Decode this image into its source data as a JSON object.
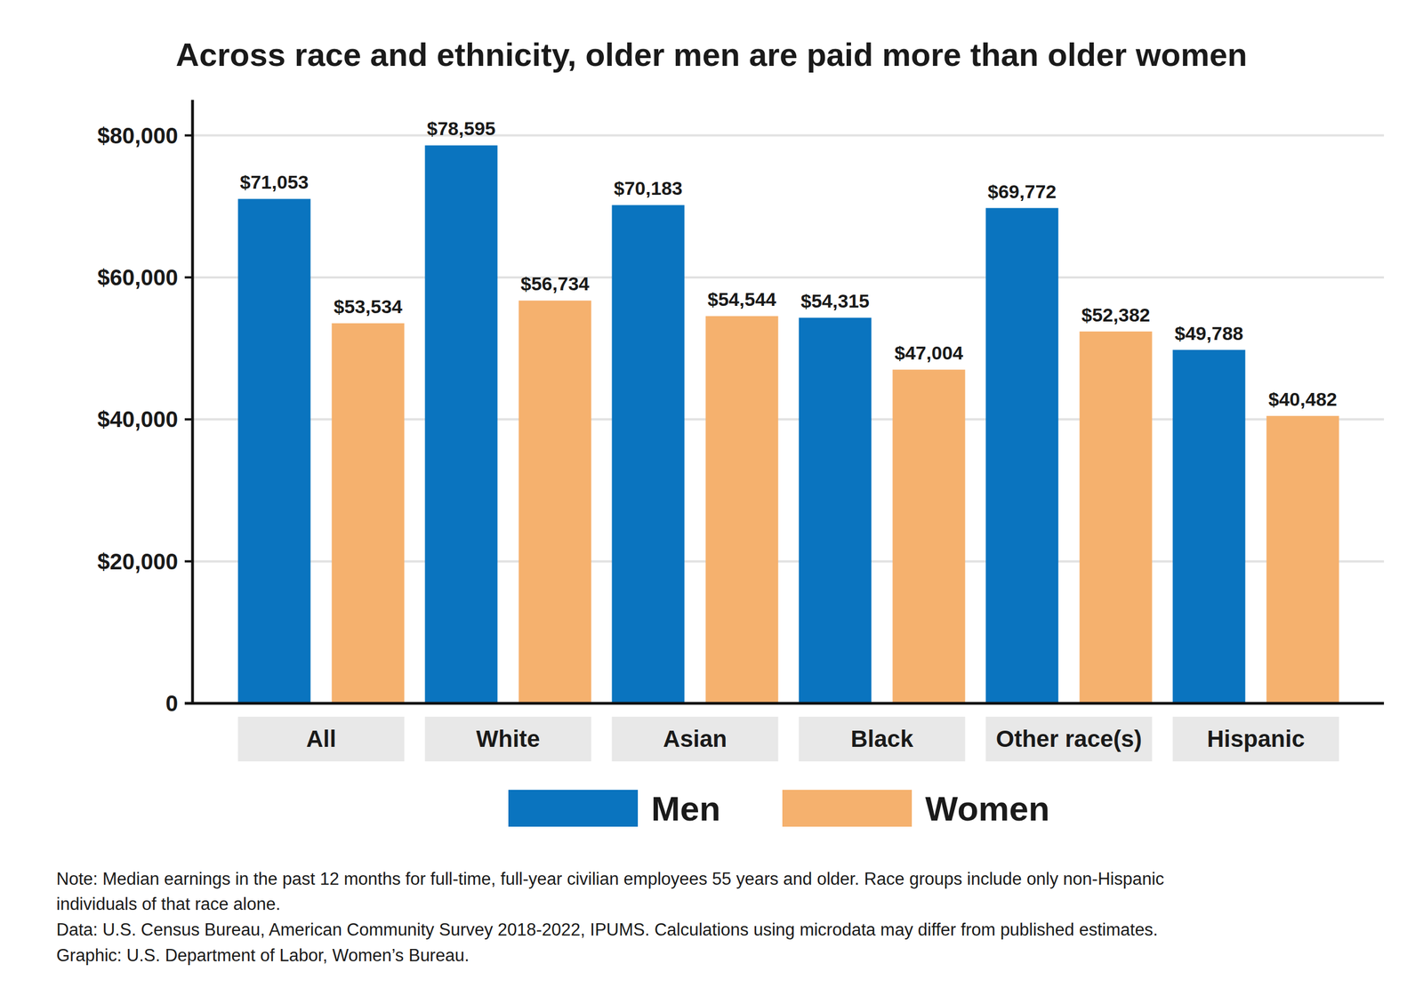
{
  "chart_data": {
    "type": "bar",
    "title": "Across race and ethnicity, older men are paid more than older women",
    "categories": [
      "All",
      "White",
      "Asian",
      "Black",
      "Other race(s)",
      "Hispanic"
    ],
    "series": [
      {
        "name": "Men",
        "color": "#0a74bf",
        "values": [
          71053,
          78595,
          70183,
          54315,
          69772,
          49788
        ],
        "value_labels": [
          "$71,053",
          "$78,595",
          "$70,183",
          "$54,315",
          "$69,772",
          "$49,788"
        ]
      },
      {
        "name": "Women",
        "color": "#f5b16e",
        "values": [
          53534,
          56734,
          54544,
          47004,
          52382,
          40482
        ],
        "value_labels": [
          "$53,534",
          "$56,734",
          "$54,544",
          "$47,004",
          "$52,382",
          "$40,482"
        ]
      }
    ],
    "ylim": [
      0,
      85000
    ],
    "yticks": [
      0,
      {
        "value": 20000,
        "label": "$20,000"
      },
      {
        "value": 40000,
        "label": "$40,000"
      },
      {
        "value": 60000,
        "label": "$60,000"
      },
      {
        "value": 80000,
        "label": "$80,000"
      }
    ],
    "grid": true,
    "data_labels": true,
    "legend": "bottom",
    "annotations": [
      "Note:  Median earnings in the past 12 months for full-time, full-year civilian employees 55 years and older. Race groups include only non-Hispanic",
      "individuals of that race alone.",
      "Data: U.S. Census Bureau, American Community Survey 2018-2022, IPUMS. Calculations using microdata may differ from published estimates.",
      "Graphic: U.S. Department of Labor, Women’s Bureau."
    ]
  }
}
